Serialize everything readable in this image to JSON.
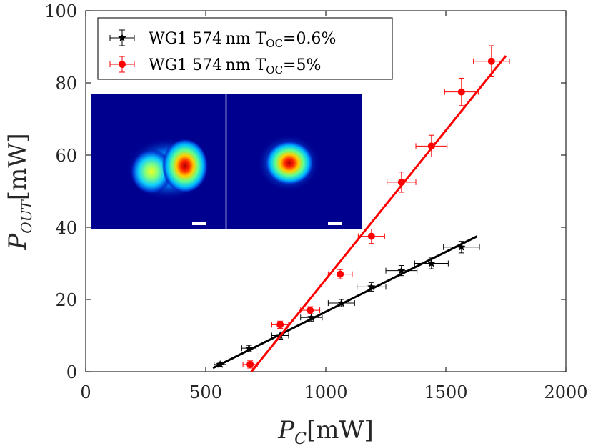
{
  "chart_data": {
    "type": "scatter",
    "xlabel": {
      "symbol": "P",
      "sub": "C",
      "unit": "[mW]"
    },
    "ylabel": {
      "symbol": "P",
      "sub": "OUT",
      "unit": "[mW]"
    },
    "xlim": [
      0,
      2000
    ],
    "ylim": [
      0,
      100
    ],
    "xticks": [
      0,
      500,
      1000,
      1500,
      2000
    ],
    "yticks": [
      0,
      20,
      40,
      60,
      80,
      100
    ],
    "grid": false,
    "legend_position": "top-left",
    "series": [
      {
        "name": "WG1 574 nm T_OC=0.6%",
        "label_main": "WG1 574 nm T",
        "label_sub": "OC",
        "label_tail": "=0.6%",
        "color": "#000000",
        "marker": "star",
        "x": [
          560,
          680,
          810,
          940,
          1065,
          1190,
          1315,
          1440,
          1565
        ],
        "y": [
          2,
          6.5,
          10,
          15,
          19,
          23.5,
          28,
          30,
          34.5
        ],
        "xerr": [
          25,
          30,
          35,
          45,
          55,
          60,
          65,
          70,
          75
        ],
        "yerr": [
          0.6,
          0.8,
          1,
          1,
          1,
          1.2,
          1.4,
          1.5,
          1.6
        ],
        "fit": {
          "x": [
            530,
            1630
          ],
          "y": [
            1,
            37.5
          ]
        }
      },
      {
        "name": "WG1 574 nm T_OC=5%",
        "label_main": "WG1 574 nm T",
        "label_sub": "OC",
        "label_tail": "=5%",
        "color": "#ff0000",
        "marker": "circle",
        "x": [
          685,
          810,
          935,
          1060,
          1190,
          1315,
          1440,
          1565,
          1690
        ],
        "y": [
          2,
          13,
          17,
          27,
          37.5,
          52.5,
          62.5,
          77.5,
          86
        ],
        "xerr": [
          30,
          35,
          40,
          50,
          55,
          60,
          65,
          70,
          75
        ],
        "yerr": [
          1,
          1,
          1,
          1.3,
          2,
          2.8,
          3,
          3.8,
          4.3
        ],
        "fit": {
          "x": [
            690,
            1750
          ],
          "y": [
            0,
            87.5
          ]
        }
      }
    ]
  },
  "inset": {
    "description_panels": 2,
    "scale_bar_color": "#ffffff",
    "background_color": "#00008f"
  }
}
